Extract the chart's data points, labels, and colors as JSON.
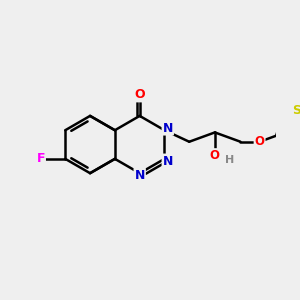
{
  "background_color": "#efefef",
  "bond_color": "#000000",
  "bond_width": 1.8,
  "atom_colors": {
    "N": "#0000cc",
    "O": "#ff0000",
    "F": "#ff00ff",
    "S": "#cccc00",
    "H": "#888888",
    "C": "#000000"
  },
  "figsize": [
    3.0,
    3.0
  ],
  "dpi": 100,
  "xlim": [
    0,
    10
  ],
  "ylim": [
    0,
    10
  ]
}
